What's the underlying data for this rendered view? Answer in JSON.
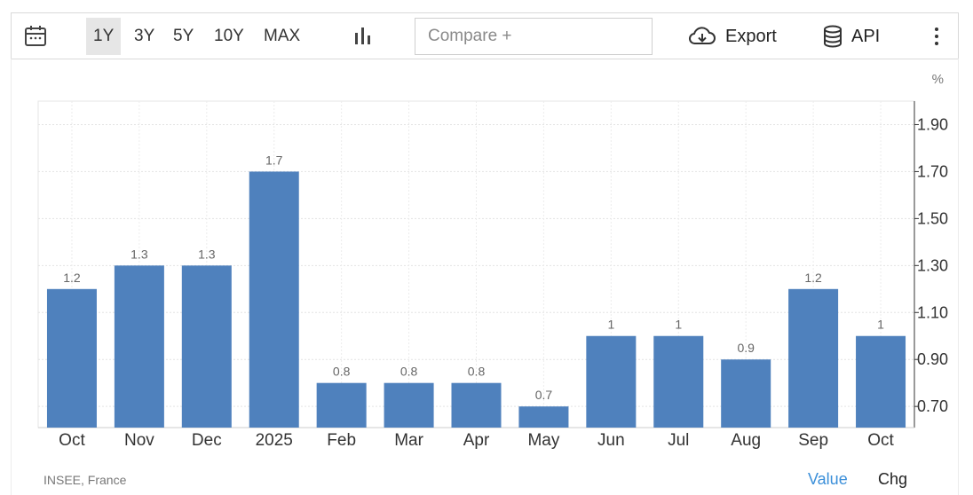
{
  "toolbar": {
    "ranges": [
      "1Y",
      "3Y",
      "5Y",
      "10Y",
      "MAX"
    ],
    "active_range": "1Y",
    "compare_placeholder": "Compare +",
    "export_label": "Export",
    "api_label": "API",
    "icons": [
      "calendar-icon",
      "bar-chart-icon",
      "cloud-download-icon",
      "database-icon",
      "more-vertical-icon"
    ]
  },
  "chart_data": {
    "type": "bar",
    "categories": [
      "Oct",
      "Nov",
      "Dec",
      "2025",
      "Feb",
      "Mar",
      "Apr",
      "May",
      "Jun",
      "Jul",
      "Aug",
      "Sep",
      "Oct"
    ],
    "values": [
      1.2,
      1.3,
      1.3,
      1.7,
      0.8,
      0.8,
      0.8,
      0.7,
      1,
      1,
      0.9,
      1.2,
      1
    ],
    "data_labels": [
      "1.2",
      "1.3",
      "1.3",
      "1.7",
      "0.8",
      "0.8",
      "0.8",
      "0.7",
      "1",
      "1",
      "0.9",
      "1.2",
      "1"
    ],
    "y_ticks": [
      "1.90",
      "1.70",
      "1.50",
      "1.30",
      "1.10",
      "0.90",
      "0.70"
    ],
    "y_tick_values": [
      1.9,
      1.7,
      1.5,
      1.3,
      1.1,
      0.9,
      0.7
    ],
    "ylim": [
      0.61,
      2.0
    ],
    "unit": "%",
    "grid": true,
    "bar_color": "#4f81bd",
    "axis_side": "right"
  },
  "footer": {
    "source": "INSEE, France",
    "value_tab": "Value",
    "chg_tab": "Chg",
    "active_tab_color": "#3b8fd9"
  }
}
